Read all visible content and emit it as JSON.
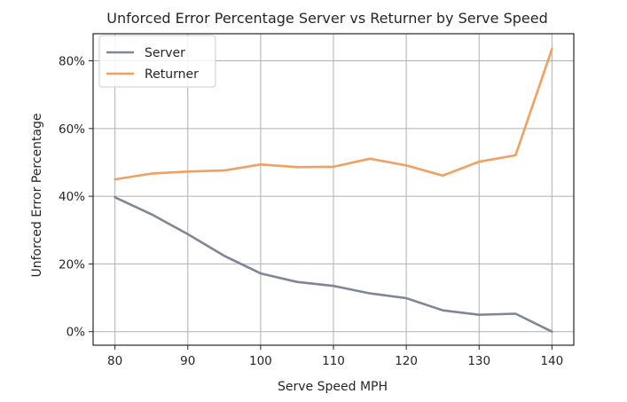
{
  "chart_data": {
    "type": "line",
    "title": "Unforced Error Percentage Server vs Returner by Serve Speed",
    "xlabel": "Serve Speed MPH",
    "ylabel": "Unforced Error Percentage",
    "x": [
      80,
      85,
      90,
      95,
      100,
      105,
      110,
      115,
      120,
      125,
      130,
      135,
      140
    ],
    "xlim": [
      77,
      143
    ],
    "ylim": [
      -4,
      88
    ],
    "xticks": [
      80,
      90,
      100,
      110,
      120,
      130,
      140
    ],
    "xtick_labels": [
      "80",
      "90",
      "100",
      "110",
      "120",
      "130",
      "140"
    ],
    "yticks": [
      0,
      20,
      40,
      60,
      80
    ],
    "ytick_labels": [
      "0%",
      "20%",
      "40%",
      "60%",
      "80%"
    ],
    "grid": true,
    "legend_position": "top-left",
    "series": [
      {
        "name": "Server",
        "color": "#7f8797",
        "values": [
          39.7,
          34.7,
          28.8,
          22.4,
          17.2,
          14.7,
          13.5,
          11.3,
          9.9,
          6.3,
          5.0,
          5.3,
          0.0
        ]
      },
      {
        "name": "Returner",
        "color": "#f0a060",
        "values": [
          45.0,
          46.7,
          47.3,
          47.6,
          49.4,
          48.6,
          48.7,
          51.1,
          49.1,
          46.1,
          50.2,
          52.1,
          83.5
        ]
      }
    ]
  }
}
